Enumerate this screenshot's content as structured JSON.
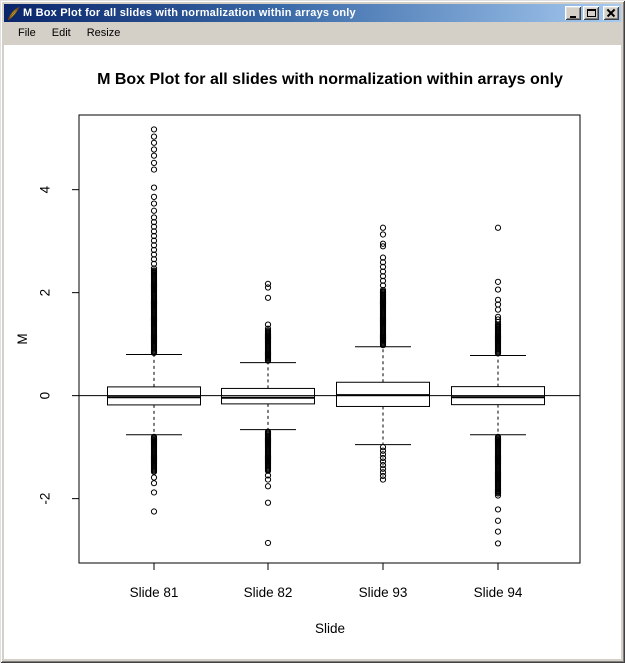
{
  "window": {
    "title": "M Box Plot for all slides with normalization within arrays only",
    "icons": {
      "app": "feather-quill",
      "minimize": "horizontal-bar",
      "maximize": "square-outline",
      "close": "x-cross"
    }
  },
  "menu": {
    "items": [
      "File",
      "Edit",
      "Resize"
    ]
  },
  "chart_data": {
    "type": "boxplot",
    "title": "M Box Plot for all slides with normalization within arrays only",
    "xlabel": "Slide",
    "ylabel": "M",
    "categories": [
      "Slide 81",
      "Slide 82",
      "Slide 93",
      "Slide 94"
    ],
    "yticks": [
      -2,
      0,
      2,
      4
    ],
    "ytick_labels": [
      "-2",
      "0",
      "2",
      "4"
    ],
    "ylim": [
      -3.25,
      5.45
    ],
    "reference_line_y": 0,
    "grid": false,
    "line_color": "#000000",
    "background": "#ffffff",
    "series": [
      {
        "name": "Slide 81",
        "stats": {
          "q1": -0.18,
          "median": -0.03,
          "q3": 0.17,
          "low": -0.76,
          "high": 0.8
        },
        "outliers": {
          "points": [
            5.17,
            5.03,
            4.91,
            4.78,
            4.66,
            4.52,
            4.39,
            4.04,
            3.86,
            3.73,
            3.59,
            -1.59,
            -1.7,
            -1.88,
            -2.25
          ],
          "columns": [
            {
              "from": 3.46,
              "to": 2.49,
              "step": 0.09
            },
            {
              "from": 2.43,
              "to": 0.84,
              "step": 0.02
            },
            {
              "from": -0.8,
              "to": -1.48,
              "step": 0.02
            }
          ]
        }
      },
      {
        "name": "Slide 82",
        "stats": {
          "q1": -0.16,
          "median": -0.04,
          "q3": 0.14,
          "low": -0.66,
          "high": 0.64
        },
        "outliers": {
          "points": [
            2.17,
            2.1,
            1.9,
            1.38,
            1.3,
            -1.55,
            -1.63,
            -1.76,
            -2.08,
            -2.86
          ],
          "columns": [
            {
              "from": 1.26,
              "to": 0.68,
              "step": 0.02
            },
            {
              "from": -0.7,
              "to": -1.45,
              "step": 0.02
            }
          ]
        }
      },
      {
        "name": "Slide 93",
        "stats": {
          "q1": -0.21,
          "median": 0.01,
          "q3": 0.26,
          "low": -0.95,
          "high": 0.95
        },
        "outliers": {
          "points": [
            3.26,
            3.13,
            2.95,
            2.9
          ],
          "columns": [
            {
              "from": 2.68,
              "to": 2.08,
              "step": 0.09
            },
            {
              "from": 2.02,
              "to": 0.99,
              "step": 0.02
            },
            {
              "from": -1.0,
              "to": -1.65,
              "step": 0.07
            }
          ]
        }
      },
      {
        "name": "Slide 94",
        "stats": {
          "q1": -0.175,
          "median": -0.03,
          "q3": 0.175,
          "low": -0.76,
          "high": 0.78
        },
        "outliers": {
          "points": [
            3.26,
            2.21,
            2.06,
            1.86,
            1.77,
            1.67,
            -1.94,
            -2.21,
            -2.43,
            -2.64,
            -2.87
          ],
          "columns": [
            {
              "from": 1.53,
              "to": 1.42,
              "step": 0.05
            },
            {
              "from": 1.38,
              "to": 0.82,
              "step": 0.02
            },
            {
              "from": -0.8,
              "to": -1.9,
              "step": 0.02
            }
          ]
        }
      }
    ]
  }
}
